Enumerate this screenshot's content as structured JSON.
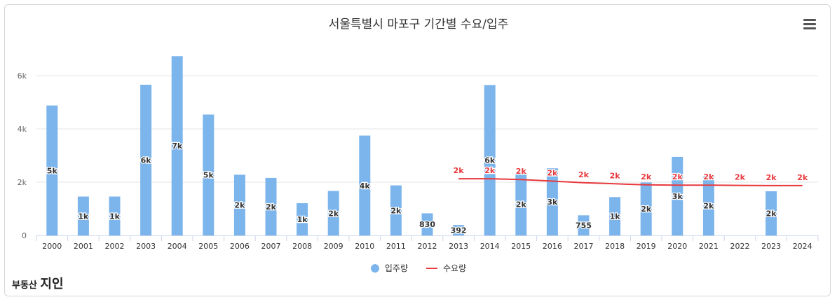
{
  "chart_data": {
    "type": "bar",
    "title": "서울특별시 마포구 기간별 수요/입주",
    "categories": [
      "2000",
      "2001",
      "2002",
      "2003",
      "2004",
      "2005",
      "2006",
      "2007",
      "2008",
      "2009",
      "2010",
      "2011",
      "2012",
      "2013",
      "2014",
      "2015",
      "2016",
      "2017",
      "2018",
      "2019",
      "2020",
      "2021",
      "2022",
      "2023",
      "2024"
    ],
    "series": [
      {
        "name": "입주량",
        "type": "bar",
        "color": "#7cb5ec",
        "values": [
          4880,
          1460,
          1460,
          5660,
          6730,
          4540,
          2280,
          2160,
          1210,
          1670,
          3750,
          1880,
          830,
          392,
          5650,
          2330,
          2520,
          755,
          1440,
          1990,
          2950,
          2250,
          null,
          1660,
          null
        ],
        "labels": [
          "5k",
          "1k",
          "1k",
          "6k",
          "7k",
          "5k",
          "2k",
          "2k",
          "1k",
          "2k",
          "4k",
          "2k",
          "830",
          "392",
          "6k",
          "2k",
          "3k",
          "755",
          "1k",
          "2k",
          "3k",
          "2k",
          "",
          "2k",
          ""
        ]
      },
      {
        "name": "수요량",
        "type": "line",
        "color": "#e8393d",
        "values": [
          null,
          null,
          null,
          null,
          null,
          null,
          null,
          null,
          null,
          null,
          null,
          null,
          null,
          2130,
          2130,
          2100,
          2040,
          1980,
          1940,
          1900,
          1890,
          1890,
          1880,
          1870,
          1870
        ],
        "labels": [
          "",
          "",
          "",
          "",
          "",
          "",
          "",
          "",
          "",
          "",
          "",
          "",
          "",
          "2k",
          "2k",
          "2k",
          "2k",
          "2k",
          "2k",
          "2k",
          "2k",
          "2k",
          "2k",
          "2k",
          "2k"
        ]
      }
    ],
    "y_ticks": [
      "0",
      "2k",
      "4k",
      "6k"
    ],
    "ylim": [
      0,
      7000
    ],
    "xlabel": "",
    "ylabel": "",
    "grid": true,
    "legend_position": "bottom-center"
  },
  "logo": {
    "small_text": "부동산지인",
    "main_text": "부동산",
    "accent_text": "지인"
  },
  "icons": {
    "menu": "hamburger-menu-icon"
  }
}
